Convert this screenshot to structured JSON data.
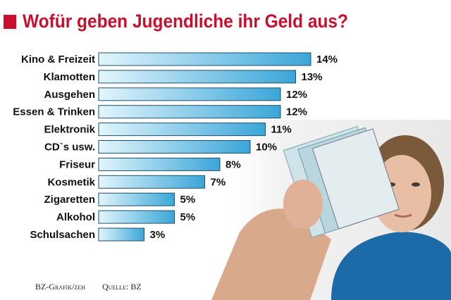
{
  "chart_data": {
    "type": "bar",
    "orientation": "horizontal",
    "title": "Wofür geben Jugendliche ihr Geld aus?",
    "categories": [
      "Kino & Freizeit",
      "Klamotten",
      "Ausgehen",
      "Essen & Trinken",
      "Elektronik",
      "CD`s usw.",
      "Friseur",
      "Kosmetik",
      "Zigaretten",
      "Alkohol",
      "Schulsachen"
    ],
    "values": [
      14,
      13,
      12,
      12,
      11,
      10,
      8,
      7,
      5,
      5,
      3
    ],
    "value_labels": [
      "14%",
      "13%",
      "12%",
      "12%",
      "11%",
      "10%",
      "8%",
      "7%",
      "5%",
      "5%",
      "3%"
    ],
    "color": "#3aa6d8",
    "credit": "BZ-Grafik/zeh",
    "source": "Quelle: BZ"
  }
}
